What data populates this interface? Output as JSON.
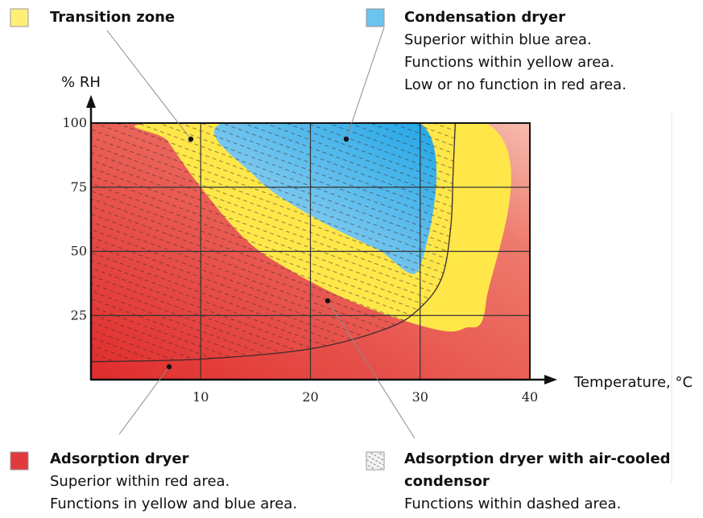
{
  "chart_data": {
    "type": "area",
    "xlabel": "Temperature, °C",
    "ylabel": "% RH",
    "xlim": [
      0,
      40
    ],
    "ylim": [
      0,
      100
    ],
    "x_ticks": [
      "10",
      "20",
      "30",
      "40"
    ],
    "y_ticks": [
      "25",
      "50",
      "75",
      "100"
    ],
    "grid": true,
    "regions": [
      {
        "color": "#e23b3b",
        "points": [
          [
            0,
            0
          ],
          [
            40,
            0
          ],
          [
            40,
            100
          ],
          [
            0,
            100
          ]
        ]
      },
      {
        "color": "#ffe74a",
        "points": [
          [
            6,
            100
          ],
          [
            36,
            100
          ],
          [
            36,
            30
          ],
          [
            34,
            20
          ],
          [
            31,
            20
          ],
          [
            24,
            30
          ],
          [
            18,
            43
          ],
          [
            14,
            55
          ],
          [
            10,
            75
          ],
          [
            7,
            93
          ]
        ]
      },
      {
        "color": "#4fb6ea",
        "points": [
          [
            12,
            100
          ],
          [
            30,
            100
          ],
          [
            30,
            44
          ],
          [
            26,
            51
          ],
          [
            20,
            64
          ],
          [
            15,
            79
          ]
        ]
      }
    ],
    "dashed_boundary": [
      [
        0,
        7
      ],
      [
        10,
        8
      ],
      [
        20,
        12
      ],
      [
        27,
        20
      ],
      [
        30,
        28
      ],
      [
        32,
        40
      ],
      [
        32.8,
        60
      ],
      [
        33,
        80
      ],
      [
        33.2,
        100
      ]
    ],
    "legend": [
      {
        "key": "transition",
        "color": "#ffef79",
        "title": "Transition zone",
        "lines": []
      },
      {
        "key": "condensation",
        "color": "#6cc3ee",
        "title": "Condensation dryer",
        "lines": [
          "Superior within blue area.",
          "Functions within yellow area.",
          "Low or no function in red area."
        ]
      },
      {
        "key": "adsorption",
        "color": "#e03a3f",
        "title": "Adsorption dryer",
        "lines": [
          "Superior within red area.",
          "Functions in yellow and blue area."
        ]
      },
      {
        "key": "air-cooled",
        "color": "#e6e6e6",
        "title": "Adsorption dryer with air-cooled condensor",
        "lines": [
          "Functions within dashed area."
        ]
      }
    ]
  }
}
